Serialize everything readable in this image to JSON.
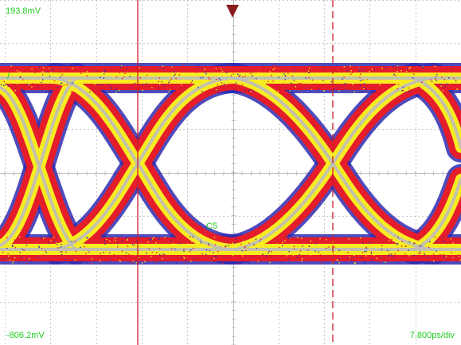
{
  "scope": {
    "vertical_top_label": "193.8mV",
    "vertical_bottom_label": "-806.2mV",
    "timebase_label": "7.800ps/div",
    "channel_label": "C5",
    "channel_marker": "/"
  },
  "colors": {
    "background": "#ffffff",
    "grid": "#b9b9b9",
    "readout_text": "#1fcc1f",
    "trigger_marker": "#8a1b1b",
    "cursor_line": "#c8202a",
    "eye_core": "#bdbdbd",
    "eye_inner": "#f7ec22",
    "eye_mid": "#e51c2a",
    "eye_outer": "#2f2cb0"
  },
  "icons": {
    "trigger_marker": "trigger-down-triangle-icon"
  }
}
